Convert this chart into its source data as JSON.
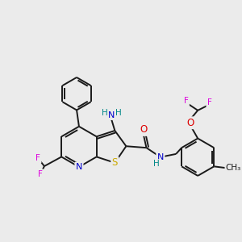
{
  "background_color": "#ebebeb",
  "bond_color": "#1a1a1a",
  "atom_colors": {
    "N": "#0000cc",
    "S": "#ccaa00",
    "O": "#dd0000",
    "F": "#dd00dd",
    "C": "#1a1a1a",
    "H": "#008888",
    "NH": "#008888",
    "NH2": "#0000cc"
  },
  "figsize": [
    3.0,
    3.0
  ],
  "dpi": 100
}
